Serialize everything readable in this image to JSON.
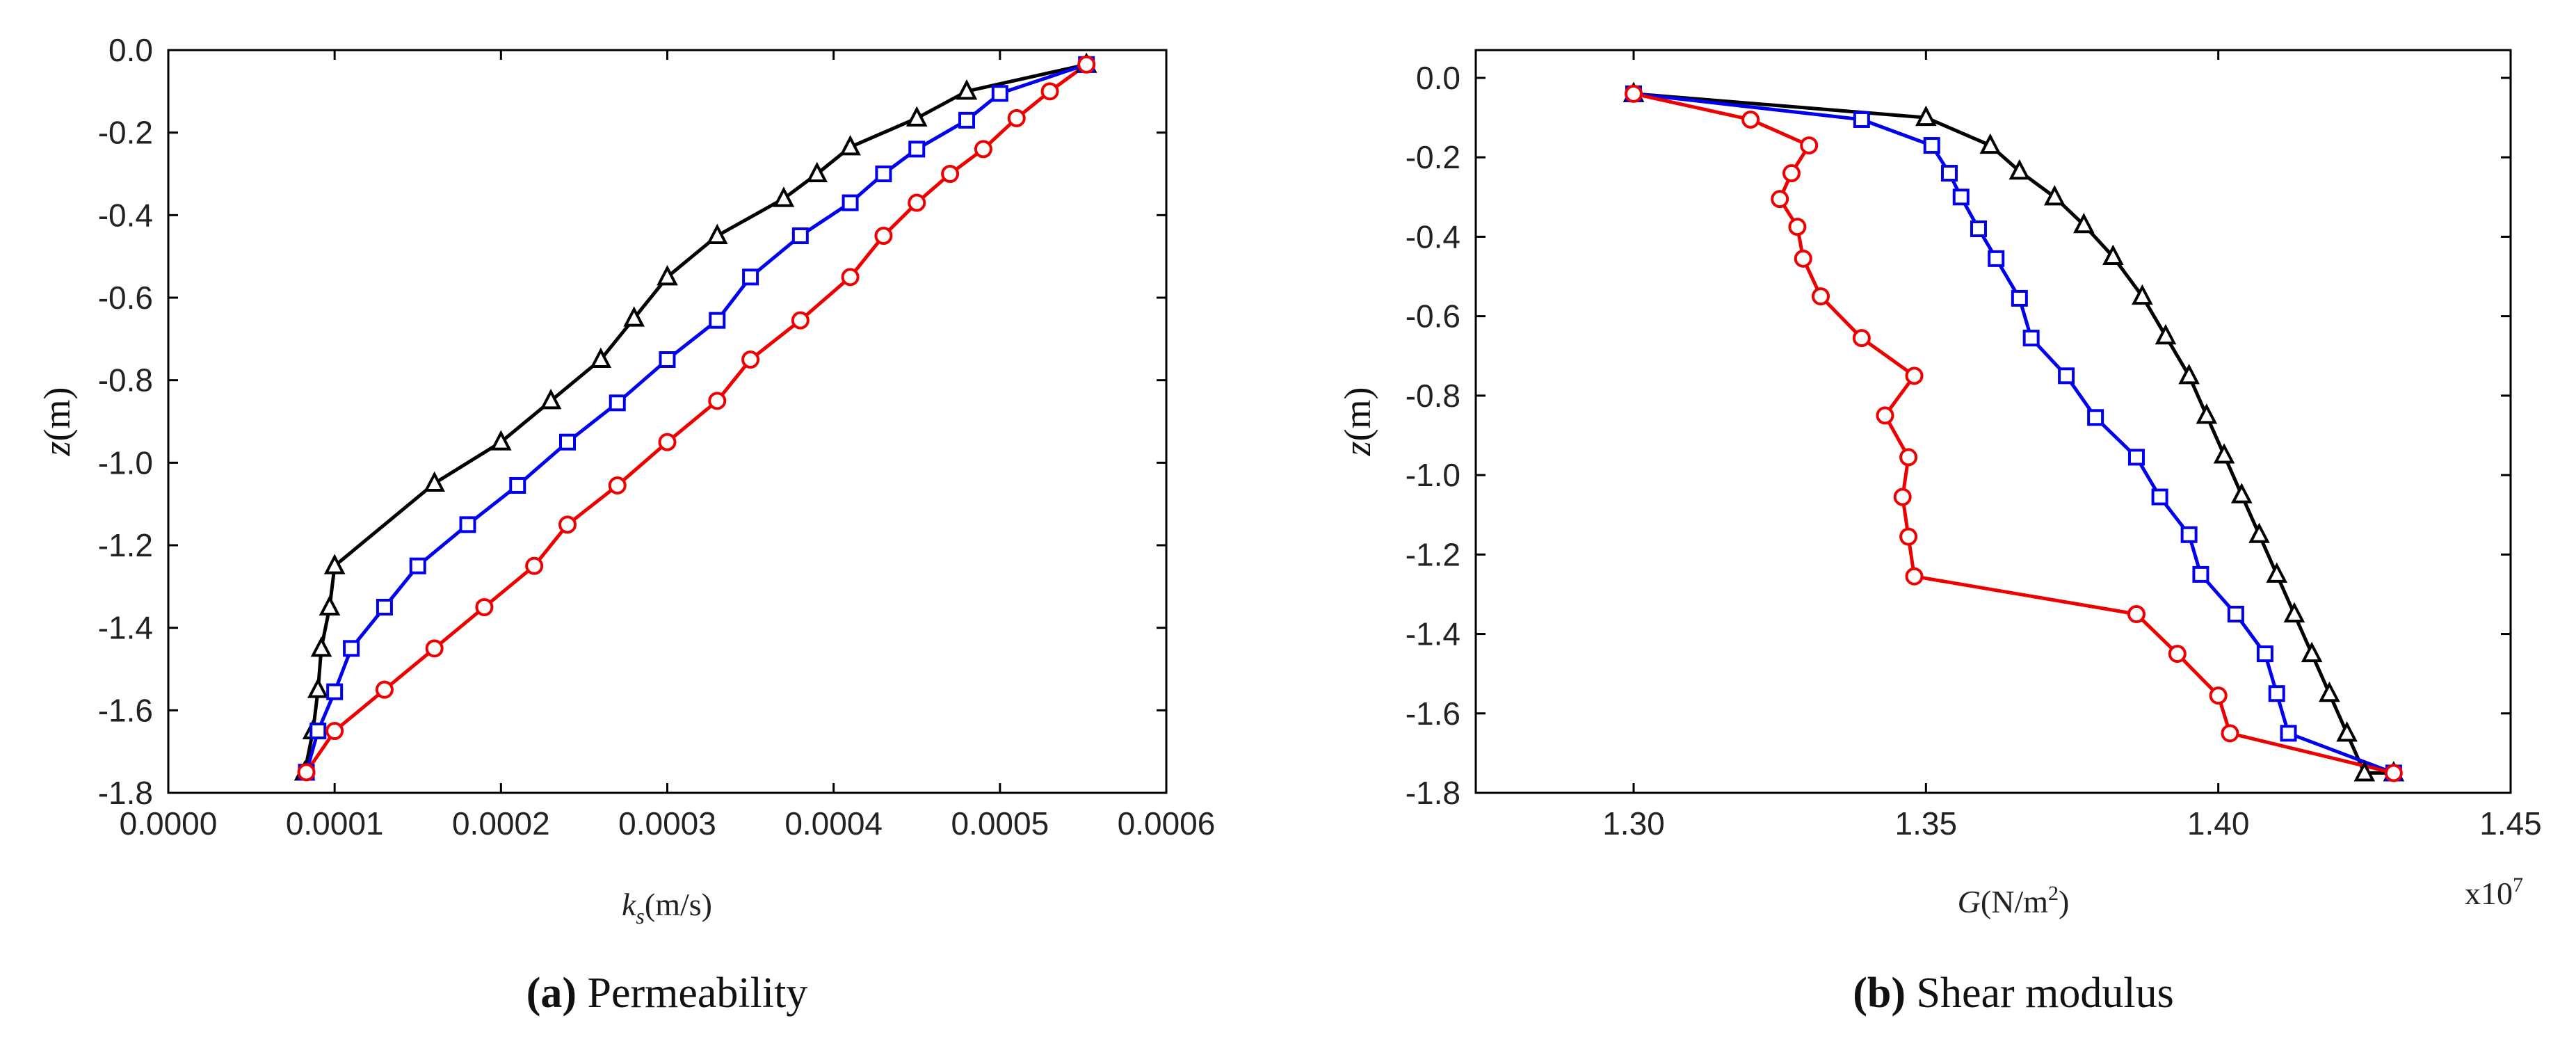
{
  "chart_data": [
    {
      "type": "line",
      "title": "",
      "caption_label": "(a)",
      "caption_text": " Permeability",
      "xlabel_main": "k",
      "xlabel_sub": "s",
      "xlabel_unit": "(m/s)",
      "ylabel_var": "z",
      "ylabel_unit": "(m)",
      "xlim": [
        0.0,
        0.0006
      ],
      "ylim": [
        -1.8,
        0.0
      ],
      "xticks": [
        0.0,
        0.0001,
        0.0002,
        0.0003,
        0.0004,
        0.0005,
        0.0006
      ],
      "xtick_labels": [
        "0.0000",
        "0.0001",
        "0.0002",
        "0.0003",
        "0.0004",
        "0.0005",
        "0.0006"
      ],
      "yticks": [
        0.0,
        -0.2,
        -0.4,
        -0.6,
        -0.8,
        -1.0,
        -1.2,
        -1.4,
        -1.6,
        -1.8
      ],
      "ytick_labels": [
        "0.0",
        "-0.2",
        "-0.4",
        "-0.6",
        "-0.8",
        "-1.0",
        "-1.2",
        "-1.4",
        "-1.6",
        "-1.8"
      ],
      "series": [
        {
          "name": "series-triangle",
          "color": "#000000",
          "marker": "triangle",
          "points": [
            [
              0.000552,
              -0.035
            ],
            [
              0.00048,
              -0.1
            ],
            [
              0.00045,
              -0.165
            ],
            [
              0.00041,
              -0.235
            ],
            [
              0.00039,
              -0.3
            ],
            [
              0.00037,
              -0.36
            ],
            [
              0.00033,
              -0.45
            ],
            [
              0.0003,
              -0.55
            ],
            [
              0.00028,
              -0.65
            ],
            [
              0.00026,
              -0.75
            ],
            [
              0.00023,
              -0.85
            ],
            [
              0.0002,
              -0.95
            ],
            [
              0.00016,
              -1.05
            ],
            [
              0.0001,
              -1.25
            ],
            [
              9.7e-05,
              -1.35
            ],
            [
              9.2e-05,
              -1.45
            ],
            [
              9e-05,
              -1.55
            ],
            [
              8.7e-05,
              -1.65
            ],
            [
              8.2e-05,
              -1.75
            ]
          ]
        },
        {
          "name": "series-square",
          "color": "#0000ee",
          "marker": "square",
          "points": [
            [
              0.000552,
              -0.035
            ],
            [
              0.0005,
              -0.105
            ],
            [
              0.00048,
              -0.17
            ],
            [
              0.00045,
              -0.24
            ],
            [
              0.00043,
              -0.3
            ],
            [
              0.00041,
              -0.37
            ],
            [
              0.00038,
              -0.45
            ],
            [
              0.00035,
              -0.55
            ],
            [
              0.00033,
              -0.655
            ],
            [
              0.0003,
              -0.75
            ],
            [
              0.00027,
              -0.855
            ],
            [
              0.00024,
              -0.95
            ],
            [
              0.00021,
              -1.055
            ],
            [
              0.00018,
              -1.15
            ],
            [
              0.00015,
              -1.25
            ],
            [
              0.00013,
              -1.35
            ],
            [
              0.00011,
              -1.45
            ],
            [
              0.0001,
              -1.555
            ],
            [
              9e-05,
              -1.65
            ],
            [
              8.3e-05,
              -1.75
            ]
          ]
        },
        {
          "name": "series-circle",
          "color": "#ee0000",
          "marker": "circle",
          "points": [
            [
              0.000552,
              -0.035
            ],
            [
              0.00053,
              -0.1
            ],
            [
              0.00051,
              -0.165
            ],
            [
              0.00049,
              -0.24
            ],
            [
              0.00047,
              -0.3
            ],
            [
              0.00045,
              -0.37
            ],
            [
              0.00043,
              -0.45
            ],
            [
              0.00041,
              -0.55
            ],
            [
              0.00038,
              -0.655
            ],
            [
              0.00035,
              -0.75
            ],
            [
              0.00033,
              -0.85
            ],
            [
              0.0003,
              -0.95
            ],
            [
              0.00027,
              -1.055
            ],
            [
              0.00024,
              -1.15
            ],
            [
              0.00022,
              -1.25
            ],
            [
              0.00019,
              -1.35
            ],
            [
              0.00016,
              -1.45
            ],
            [
              0.00013,
              -1.55
            ],
            [
              0.0001,
              -1.65
            ],
            [
              8.3e-05,
              -1.75
            ]
          ]
        }
      ]
    },
    {
      "type": "line",
      "title": "",
      "caption_label": "(b)",
      "caption_text": " Shear modulus",
      "xlabel_main": "G",
      "xlabel_unit": "(N/m",
      "xlabel_sup": "2",
      "xlabel_close": ")",
      "x_multiplier": "x10",
      "x_multiplier_exp": "7",
      "ylabel_var": "z",
      "ylabel_unit": "(m)",
      "xlim": [
        1.273,
        1.45
      ],
      "ylim": [
        -1.8,
        0.07
      ],
      "xticks": [
        1.3,
        1.35,
        1.4,
        1.45
      ],
      "xtick_labels": [
        "1.30",
        "1.35",
        "1.40",
        "1.45"
      ],
      "yticks": [
        0.0,
        -0.2,
        -0.4,
        -0.6,
        -0.8,
        -1.0,
        -1.2,
        -1.4,
        -1.6,
        -1.8
      ],
      "ytick_labels": [
        "0.0",
        "-0.2",
        "-0.4",
        "-0.6",
        "-0.8",
        "-1.0",
        "-1.2",
        "-1.4",
        "-1.6",
        "-1.8"
      ],
      "series": [
        {
          "name": "series-triangle",
          "color": "#000000",
          "marker": "triangle",
          "points": [
            [
              1.3,
              -0.04
            ],
            [
              1.35,
              -0.1
            ],
            [
              1.361,
              -0.17
            ],
            [
              1.366,
              -0.235
            ],
            [
              1.372,
              -0.3
            ],
            [
              1.377,
              -0.37
            ],
            [
              1.382,
              -0.45
            ],
            [
              1.387,
              -0.55
            ],
            [
              1.391,
              -0.65
            ],
            [
              1.395,
              -0.75
            ],
            [
              1.398,
              -0.85
            ],
            [
              1.401,
              -0.95
            ],
            [
              1.404,
              -1.05
            ],
            [
              1.407,
              -1.15
            ],
            [
              1.41,
              -1.25
            ],
            [
              1.413,
              -1.35
            ],
            [
              1.416,
              -1.45
            ],
            [
              1.419,
              -1.55
            ],
            [
              1.422,
              -1.65
            ],
            [
              1.425,
              -1.75
            ],
            [
              1.43,
              -1.75
            ]
          ]
        },
        {
          "name": "series-square",
          "color": "#0000ee",
          "marker": "square",
          "points": [
            [
              1.3,
              -0.04
            ],
            [
              1.339,
              -0.105
            ],
            [
              1.351,
              -0.17
            ],
            [
              1.354,
              -0.24
            ],
            [
              1.356,
              -0.3
            ],
            [
              1.359,
              -0.38
            ],
            [
              1.362,
              -0.455
            ],
            [
              1.366,
              -0.555
            ],
            [
              1.368,
              -0.655
            ],
            [
              1.374,
              -0.75
            ],
            [
              1.379,
              -0.855
            ],
            [
              1.386,
              -0.955
            ],
            [
              1.39,
              -1.055
            ],
            [
              1.395,
              -1.15
            ],
            [
              1.397,
              -1.25
            ],
            [
              1.403,
              -1.35
            ],
            [
              1.408,
              -1.45
            ],
            [
              1.41,
              -1.55
            ],
            [
              1.412,
              -1.65
            ],
            [
              1.43,
              -1.75
            ]
          ]
        },
        {
          "name": "series-circle",
          "color": "#ee0000",
          "marker": "circle",
          "points": [
            [
              1.3,
              -0.04
            ],
            [
              1.32,
              -0.105
            ],
            [
              1.33,
              -0.17
            ],
            [
              1.327,
              -0.24
            ],
            [
              1.325,
              -0.305
            ],
            [
              1.328,
              -0.375
            ],
            [
              1.329,
              -0.455
            ],
            [
              1.332,
              -0.55
            ],
            [
              1.339,
              -0.655
            ],
            [
              1.348,
              -0.75
            ],
            [
              1.343,
              -0.85
            ],
            [
              1.347,
              -0.955
            ],
            [
              1.346,
              -1.055
            ],
            [
              1.347,
              -1.155
            ],
            [
              1.348,
              -1.255
            ],
            [
              1.386,
              -1.35
            ],
            [
              1.393,
              -1.45
            ],
            [
              1.4,
              -1.555
            ],
            [
              1.402,
              -1.65
            ],
            [
              1.43,
              -1.75
            ]
          ]
        }
      ]
    }
  ]
}
